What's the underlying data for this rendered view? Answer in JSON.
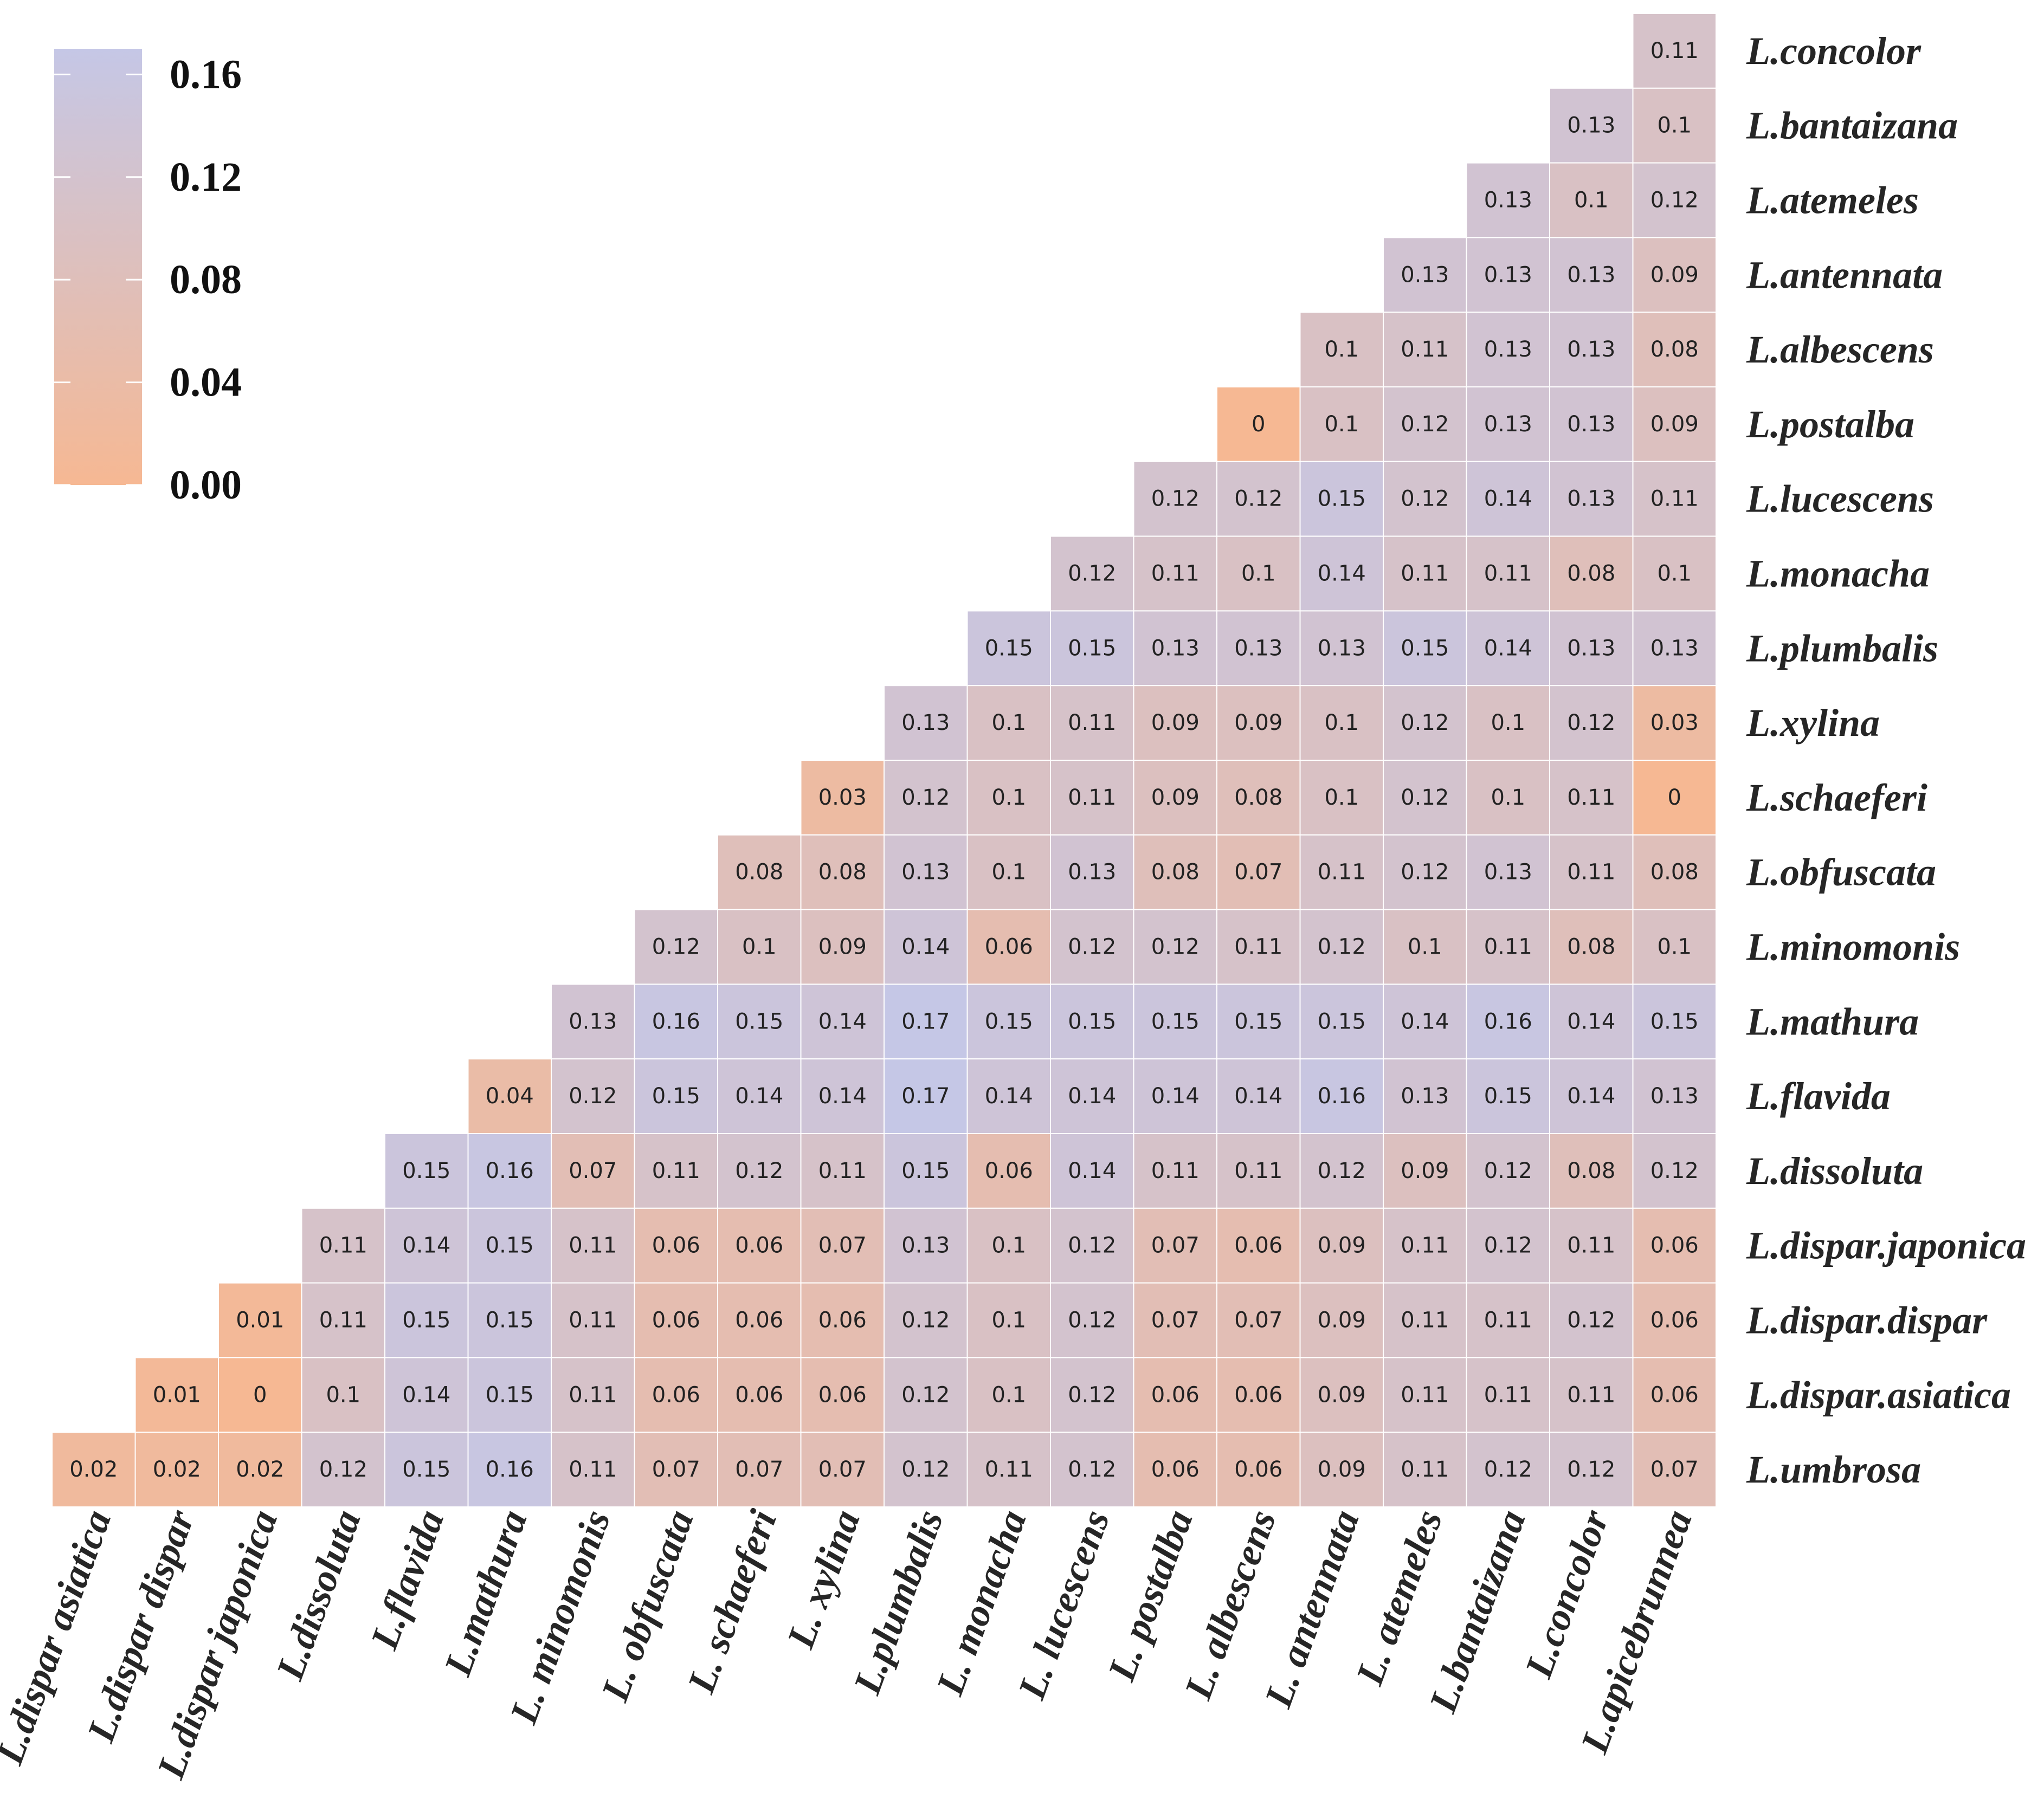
{
  "chart_data": {
    "type": "heatmap",
    "title": "",
    "row_labels": [
      "L.concolor",
      "L.bantaizana",
      "L.atemeles",
      "L.antennata",
      "L.albescens",
      "L.postalba",
      "L.lucescens",
      "L.monacha",
      "L.plumbalis",
      "L.xylina",
      "L.schaeferi",
      "L.obfuscata",
      "L.minomonis",
      "L.mathura",
      "L.flavida",
      "L.dissoluta",
      "L.dispar.japonica",
      "L.dispar.dispar",
      "L.dispar.asiatica",
      "L.umbrosa"
    ],
    "col_labels": [
      "L.dispar asiatica",
      "L.dispar dispar",
      "L.dispar japonica",
      "L.dissoluta",
      "L.flavida",
      "L.mathura",
      "L. minomonis",
      "L. obfuscata",
      "L. schaeferi",
      "L. xylina",
      "L.plumbalis",
      "L. monacha",
      "L. lucescens",
      "L. postalba",
      "L.  albescens",
      "L. antennata",
      "L. atemeles",
      "L.bantaizana",
      "L.concolor",
      "L.apicebrunnea"
    ],
    "values": [
      [
        null,
        null,
        null,
        null,
        null,
        null,
        null,
        null,
        null,
        null,
        null,
        null,
        null,
        null,
        null,
        null,
        null,
        null,
        null,
        "0.11"
      ],
      [
        null,
        null,
        null,
        null,
        null,
        null,
        null,
        null,
        null,
        null,
        null,
        null,
        null,
        null,
        null,
        null,
        null,
        null,
        "0.13",
        "0.1"
      ],
      [
        null,
        null,
        null,
        null,
        null,
        null,
        null,
        null,
        null,
        null,
        null,
        null,
        null,
        null,
        null,
        null,
        null,
        "0.13",
        "0.1",
        "0.12"
      ],
      [
        null,
        null,
        null,
        null,
        null,
        null,
        null,
        null,
        null,
        null,
        null,
        null,
        null,
        null,
        null,
        null,
        "0.13",
        "0.13",
        "0.13",
        "0.09"
      ],
      [
        null,
        null,
        null,
        null,
        null,
        null,
        null,
        null,
        null,
        null,
        null,
        null,
        null,
        null,
        null,
        "0.1",
        "0.11",
        "0.13",
        "0.13",
        "0.08"
      ],
      [
        null,
        null,
        null,
        null,
        null,
        null,
        null,
        null,
        null,
        null,
        null,
        null,
        null,
        null,
        "0",
        "0.1",
        "0.12",
        "0.13",
        "0.13",
        "0.09"
      ],
      [
        null,
        null,
        null,
        null,
        null,
        null,
        null,
        null,
        null,
        null,
        null,
        null,
        null,
        "0.12",
        "0.12",
        "0.15",
        "0.12",
        "0.14",
        "0.13",
        "0.11"
      ],
      [
        null,
        null,
        null,
        null,
        null,
        null,
        null,
        null,
        null,
        null,
        null,
        null,
        "0.12",
        "0.11",
        "0.1",
        "0.14",
        "0.11",
        "0.11",
        "0.08",
        "0.1"
      ],
      [
        null,
        null,
        null,
        null,
        null,
        null,
        null,
        null,
        null,
        null,
        null,
        "0.15",
        "0.15",
        "0.13",
        "0.13",
        "0.13",
        "0.15",
        "0.14",
        "0.13",
        "0.13"
      ],
      [
        null,
        null,
        null,
        null,
        null,
        null,
        null,
        null,
        null,
        null,
        "0.13",
        "0.1",
        "0.11",
        "0.09",
        "0.09",
        "0.1",
        "0.12",
        "0.1",
        "0.12",
        "0.03"
      ],
      [
        null,
        null,
        null,
        null,
        null,
        null,
        null,
        null,
        null,
        "0.03",
        "0.12",
        "0.1",
        "0.11",
        "0.09",
        "0.08",
        "0.1",
        "0.12",
        "0.1",
        "0.11",
        "0"
      ],
      [
        null,
        null,
        null,
        null,
        null,
        null,
        null,
        null,
        "0.08",
        "0.08",
        "0.13",
        "0.1",
        "0.13",
        "0.08",
        "0.07",
        "0.11",
        "0.12",
        "0.13",
        "0.11",
        "0.08"
      ],
      [
        null,
        null,
        null,
        null,
        null,
        null,
        null,
        "0.12",
        "0.1",
        "0.09",
        "0.14",
        "0.06",
        "0.12",
        "0.12",
        "0.11",
        "0.12",
        "0.1",
        "0.11",
        "0.08",
        "0.1"
      ],
      [
        null,
        null,
        null,
        null,
        null,
        null,
        "0.13",
        "0.16",
        "0.15",
        "0.14",
        "0.17",
        "0.15",
        "0.15",
        "0.15",
        "0.15",
        "0.15",
        "0.14",
        "0.16",
        "0.14",
        "0.15"
      ],
      [
        null,
        null,
        null,
        null,
        null,
        "0.04",
        "0.12",
        "0.15",
        "0.14",
        "0.14",
        "0.17",
        "0.14",
        "0.14",
        "0.14",
        "0.14",
        "0.16",
        "0.13",
        "0.15",
        "0.14",
        "0.13"
      ],
      [
        null,
        null,
        null,
        null,
        "0.15",
        "0.16",
        "0.07",
        "0.11",
        "0.12",
        "0.11",
        "0.15",
        "0.06",
        "0.14",
        "0.11",
        "0.11",
        "0.12",
        "0.09",
        "0.12",
        "0.08",
        "0.12"
      ],
      [
        null,
        null,
        null,
        "0.11",
        "0.14",
        "0.15",
        "0.11",
        "0.06",
        "0.06",
        "0.07",
        "0.13",
        "0.1",
        "0.12",
        "0.07",
        "0.06",
        "0.09",
        "0.11",
        "0.12",
        "0.11",
        "0.06"
      ],
      [
        null,
        null,
        "0.01",
        "0.11",
        "0.15",
        "0.15",
        "0.11",
        "0.06",
        "0.06",
        "0.06",
        "0.12",
        "0.1",
        "0.12",
        "0.07",
        "0.07",
        "0.09",
        "0.11",
        "0.11",
        "0.12",
        "0.06"
      ],
      [
        null,
        "0.01",
        "0",
        "0.1",
        "0.14",
        "0.15",
        "0.11",
        "0.06",
        "0.06",
        "0.06",
        "0.12",
        "0.1",
        "0.12",
        "0.06",
        "0.06",
        "0.09",
        "0.11",
        "0.11",
        "0.11",
        "0.06"
      ],
      [
        "0.02",
        "0.02",
        "0.02",
        "0.12",
        "0.15",
        "0.16",
        "0.11",
        "0.07",
        "0.07",
        "0.07",
        "0.12",
        "0.11",
        "0.12",
        "0.06",
        "0.06",
        "0.09",
        "0.11",
        "0.12",
        "0.12",
        "0.07"
      ]
    ],
    "colorbar": {
      "min": 0.0,
      "max": 0.17,
      "ticks": [
        0.0,
        0.04,
        0.08,
        0.12,
        0.16
      ],
      "tick_labels": [
        "0.00",
        "0.04",
        "0.08",
        "0.12",
        "0.16"
      ],
      "low_color": "#f6b893",
      "high_color": "#c5c7e6",
      "position": "top-left"
    }
  }
}
